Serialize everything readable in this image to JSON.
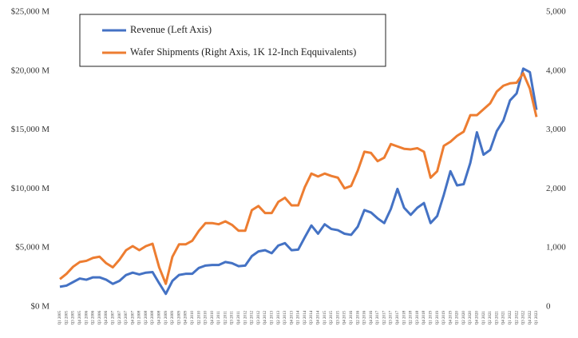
{
  "chart_data": {
    "type": "line",
    "categories": [
      "Q1 2005",
      "Q2 2005",
      "Q3 2005",
      "Q4 2005",
      "Q1 2006",
      "Q2 2006",
      "Q3 2006",
      "Q4 2006",
      "Q1 2007",
      "Q2 2007",
      "Q3 2007",
      "Q4 2007",
      "Q1 2008",
      "Q2 2008",
      "Q3 2008",
      "Q4 2008",
      "Q1 2009",
      "Q2 2009",
      "Q3 2009",
      "Q4 2009",
      "Q1 2010",
      "Q2 2010",
      "Q3 2010",
      "Q4 2010",
      "Q1 2011",
      "Q2 2011",
      "Q3 2011",
      "Q4 2011",
      "Q1 2012",
      "Q2 2012",
      "Q3 2012",
      "Q4 2012",
      "Q1 2013",
      "Q2 2013",
      "Q3 2013",
      "Q4 2013",
      "Q1 2014",
      "Q2 2014",
      "Q3 2014",
      "Q4 2014",
      "Q1 2015",
      "Q2 2015",
      "Q3 2015",
      "Q4 2015",
      "Q1 2016",
      "Q2 2016",
      "Q3 2016",
      "Q4 2016",
      "Q1 2017",
      "Q2 2017",
      "Q3 2017",
      "Q4 2017",
      "Q1 2018",
      "Q2 2018",
      "Q3 2018",
      "Q4 2018",
      "Q1 2019",
      "Q2 2019",
      "Q3 2019",
      "Q4 2019",
      "Q1 2020",
      "Q2 2020",
      "Q3 2020",
      "Q4 2020",
      "Q1 2021",
      "Q2 2021",
      "Q3 2021",
      "Q4 2021",
      "Q1 2022",
      "Q2 2022",
      "Q3 2022",
      "Q4 2022",
      "Q1 2023"
    ],
    "series": [
      {
        "name": "Revenue (Left Axis)",
        "color": "#4472c4",
        "axis": "y",
        "values": [
          1700,
          1800,
          2100,
          2400,
          2300,
          2500,
          2500,
          2300,
          1950,
          2200,
          2700,
          2900,
          2750,
          2900,
          2950,
          2000,
          1100,
          2200,
          2700,
          2800,
          2800,
          3300,
          3500,
          3550,
          3550,
          3800,
          3700,
          3450,
          3500,
          4300,
          4700,
          4800,
          4550,
          5200,
          5400,
          4800,
          4850,
          5900,
          6900,
          6200,
          7000,
          6600,
          6500,
          6200,
          6100,
          6800,
          8200,
          8000,
          7500,
          7100,
          8300,
          10000,
          8400,
          7800,
          8400,
          8800,
          7100,
          7700,
          9500,
          11500,
          10300,
          10400,
          12200,
          14800,
          12900,
          13300,
          14900,
          15800,
          17500,
          18100,
          20200,
          19900,
          16700
        ]
      },
      {
        "name": "Wafer Shipments (Right Axis, 1K 12-Inch Eqquivalents)",
        "color": "#ed7d31",
        "axis": "y2",
        "values": [
          470,
          560,
          680,
          760,
          780,
          830,
          850,
          740,
          670,
          800,
          960,
          1030,
          960,
          1030,
          1070,
          670,
          390,
          850,
          1060,
          1060,
          1120,
          1290,
          1420,
          1420,
          1400,
          1450,
          1390,
          1290,
          1290,
          1640,
          1710,
          1590,
          1590,
          1780,
          1850,
          1720,
          1720,
          2030,
          2260,
          2210,
          2260,
          2220,
          2190,
          2010,
          2050,
          2310,
          2630,
          2610,
          2470,
          2530,
          2760,
          2720,
          2680,
          2670,
          2690,
          2630,
          2190,
          2300,
          2730,
          2800,
          2900,
          2970,
          3250,
          3250,
          3350,
          3450,
          3650,
          3750,
          3790,
          3800,
          3960,
          3700,
          3220
        ]
      }
    ],
    "ylim": [
      0,
      25000
    ],
    "yticks": [
      {
        "value": 0,
        "label": "$0 M"
      },
      {
        "value": 5000,
        "label": "$5,000 M"
      },
      {
        "value": 10000,
        "label": "$10,000 M"
      },
      {
        "value": 15000,
        "label": "$15,000 M"
      },
      {
        "value": 20000,
        "label": "$20,000 M"
      },
      {
        "value": 25000,
        "label": "$25,000 M"
      }
    ],
    "y2lim": [
      0,
      5000
    ],
    "y2ticks": [
      0,
      {
        "value": 1000,
        "label": "1,000"
      },
      {
        "value": 2000,
        "label": "2,000"
      },
      {
        "value": 3000,
        "label": "3,000"
      },
      {
        "value": 4000,
        "label": "4,000"
      },
      {
        "value": 5000,
        "label": "5,000"
      }
    ],
    "grid": false
  }
}
